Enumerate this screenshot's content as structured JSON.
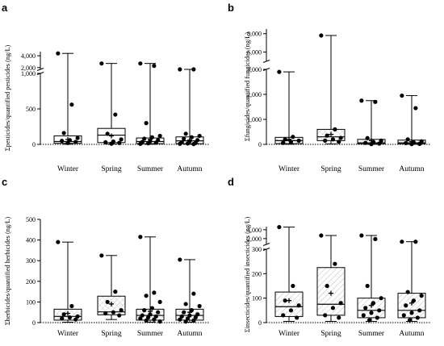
{
  "chart_data": [
    {
      "panel": "a",
      "type": "box",
      "ylabel": "Σpesticides/quantified pesticides (ng/L)",
      "yticks": [
        "0",
        "500",
        "1,000",
        "2,000",
        "4,000"
      ],
      "axis_segments": [
        {
          "range": [
            0,
            1000
          ],
          "ticks": [
            0,
            500,
            1000
          ]
        },
        {
          "range": [
            1700,
            4700
          ],
          "ticks": [
            2000,
            4000
          ]
        }
      ],
      "categories": [
        "Winter",
        "Spring",
        "Summer",
        "Autumn"
      ],
      "boxes": [
        {
          "min": 2,
          "q1": 15,
          "median": 40,
          "q3": 120,
          "max": 4400,
          "mean": 70,
          "hatch": "none"
        },
        {
          "min": 5,
          "q1": 25,
          "median": 130,
          "q3": 225,
          "max": 2700,
          "mean": 120,
          "hatch": "none"
        },
        {
          "min": 2,
          "q1": 10,
          "median": 40,
          "q3": 90,
          "max": 2700,
          "mean": 70,
          "hatch": "none"
        },
        {
          "min": 2,
          "q1": 10,
          "median": 50,
          "q3": 105,
          "max": 1400,
          "mean": 60,
          "hatch": "none"
        }
      ],
      "points": [
        [
          4400,
          560,
          160,
          90,
          60,
          50,
          35,
          20
        ],
        [
          2700,
          420,
          150,
          70,
          40,
          30,
          20,
          10
        ],
        [
          2700,
          2300,
          300,
          120,
          100,
          80,
          60,
          45,
          35,
          25,
          15,
          8
        ],
        [
          1400,
          1400,
          150,
          120,
          100,
          80,
          60,
          45,
          30,
          20,
          12,
          8,
          4
        ]
      ]
    },
    {
      "panel": "b",
      "type": "box",
      "ylabel": "Σfungicides/quantified fungicides (ng/L)",
      "yticks": [
        "0",
        "1,000",
        "2,000",
        "3,000",
        "6,000",
        "8,000"
      ],
      "axis_segments": [
        {
          "range": [
            0,
            3000
          ],
          "ticks": [
            0,
            1000,
            2000,
            3000
          ]
        },
        {
          "range": [
            5000,
            8500
          ],
          "ticks": [
            6000,
            8000
          ]
        }
      ],
      "categories": [
        "Winter",
        "Spring",
        "Summer",
        "Autumn"
      ],
      "boxes": [
        {
          "min": 5,
          "q1": 30,
          "median": 150,
          "q3": 280,
          "max": 2900,
          "mean": 200,
          "hatch": "cross"
        },
        {
          "min": 20,
          "q1": 150,
          "median": 300,
          "q3": 600,
          "max": 7800,
          "mean": 400,
          "hatch": "cross"
        },
        {
          "min": 5,
          "q1": 20,
          "median": 60,
          "q3": 200,
          "max": 1750,
          "mean": 150,
          "hatch": "cross"
        },
        {
          "min": 5,
          "q1": 20,
          "median": 60,
          "q3": 170,
          "max": 1950,
          "mean": 110,
          "hatch": "cross"
        }
      ],
      "points": [
        [
          2900,
          300,
          200,
          150,
          100,
          60
        ],
        [
          7800,
          600,
          350,
          260,
          200,
          150,
          100
        ],
        [
          1750,
          1700,
          250,
          150,
          100,
          60,
          30,
          10
        ],
        [
          1950,
          1450,
          200,
          120,
          80,
          50,
          20,
          10
        ]
      ]
    },
    {
      "panel": "c",
      "type": "box",
      "ylabel": "Σherbicides/quantified herbicides (ng/L)",
      "yticks": [
        "0",
        "100",
        "200",
        "300",
        "400",
        "500"
      ],
      "axis_segments": [
        {
          "range": [
            0,
            500
          ],
          "ticks": [
            0,
            100,
            200,
            300,
            400,
            500
          ]
        }
      ],
      "categories": [
        "Winter",
        "Spring",
        "Summer",
        "Autumn"
      ],
      "boxes": [
        {
          "min": 2,
          "q1": 12,
          "median": 30,
          "q3": 65,
          "max": 390,
          "mean": 45,
          "hatch": "cross"
        },
        {
          "min": 15,
          "q1": 38,
          "median": 52,
          "q3": 128,
          "max": 325,
          "mean": 90,
          "hatch": "cross"
        },
        {
          "min": 2,
          "q1": 12,
          "median": 35,
          "q3": 65,
          "max": 415,
          "mean": 55,
          "hatch": "cross"
        },
        {
          "min": 2,
          "q1": 12,
          "median": 35,
          "q3": 65,
          "max": 305,
          "mean": 50,
          "hatch": "cross"
        }
      ],
      "points": [
        [
          390,
          80,
          40,
          30,
          25,
          20,
          15
        ],
        [
          325,
          150,
          100,
          60,
          50,
          45,
          35
        ],
        [
          415,
          145,
          130,
          100,
          70,
          60,
          50,
          40,
          35,
          30,
          25,
          20,
          15,
          10,
          5
        ],
        [
          305,
          140,
          90,
          80,
          60,
          50,
          40,
          35,
          30,
          25,
          20,
          15,
          10,
          5
        ]
      ]
    },
    {
      "panel": "d",
      "type": "box",
      "ylabel": "Σinsecticides/quantified insecticides (ng/L)",
      "yticks": [
        "0",
        "100",
        "200",
        "300",
        "2,000",
        "4,000"
      ],
      "axis_segments": [
        {
          "range": [
            0,
            300
          ],
          "ticks": [
            0,
            100,
            200,
            300
          ]
        },
        {
          "range": [
            700,
            4700
          ],
          "ticks": [
            2000,
            4000
          ]
        }
      ],
      "categories": [
        "Winter",
        "Spring",
        "Summer",
        "Autumn"
      ],
      "boxes": [
        {
          "min": 5,
          "q1": 25,
          "median": 65,
          "q3": 125,
          "max": 4600,
          "mean": 90,
          "hatch": "diagonal"
        },
        {
          "min": 5,
          "q1": 30,
          "median": 75,
          "q3": 225,
          "max": 2700,
          "mean": 120,
          "hatch": "diagonal"
        },
        {
          "min": 5,
          "q1": 20,
          "median": 50,
          "q3": 100,
          "max": 2700,
          "mean": 70,
          "hatch": "diagonal"
        },
        {
          "min": 5,
          "q1": 20,
          "median": 50,
          "q3": 120,
          "max": 1300,
          "mean": 80,
          "hatch": "diagonal"
        }
      ],
      "points": [
        [
          4600,
          150,
          90,
          70,
          50,
          30,
          20
        ],
        [
          2700,
          240,
          150,
          80,
          60,
          30,
          20
        ],
        [
          2700,
          1900,
          150,
          100,
          80,
          60,
          50,
          40,
          30,
          20,
          10
        ],
        [
          1300,
          1300,
          125,
          110,
          90,
          70,
          50,
          40,
          30,
          20,
          10
        ]
      ]
    }
  ]
}
